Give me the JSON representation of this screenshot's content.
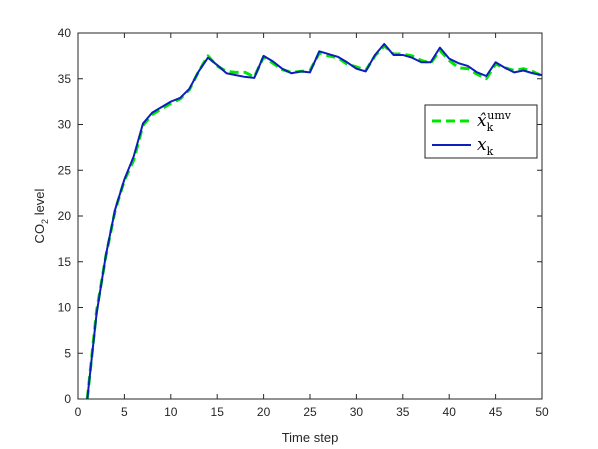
{
  "chart_data": {
    "type": "line",
    "title": "",
    "xlabel": "Time step",
    "ylabel": "CO",
    "ylabel_subscript": "2",
    "ylabel_suffix": " level",
    "xlim": [
      0,
      50
    ],
    "ylim": [
      0,
      40
    ],
    "xticks": [
      0,
      5,
      10,
      15,
      20,
      25,
      30,
      35,
      40,
      45,
      50
    ],
    "yticks": [
      0,
      5,
      10,
      15,
      20,
      25,
      30,
      35,
      40
    ],
    "grid": false,
    "legend_position": "top-right",
    "x": [
      1,
      2,
      3,
      4,
      5,
      6,
      7,
      8,
      9,
      10,
      11,
      12,
      13,
      14,
      15,
      16,
      17,
      18,
      19,
      20,
      21,
      22,
      23,
      24,
      25,
      26,
      27,
      28,
      29,
      30,
      31,
      32,
      33,
      34,
      35,
      36,
      37,
      38,
      39,
      40,
      41,
      42,
      43,
      44,
      45,
      46,
      47,
      48,
      49,
      50
    ],
    "series": [
      {
        "name_base": "x̂",
        "name_sub": "k",
        "name_sup": "umv",
        "style": "dashed",
        "color": "#00e600",
        "values": [
          0,
          9.6,
          15.6,
          20.6,
          23.9,
          26.1,
          29.9,
          31.1,
          31.7,
          32.3,
          32.8,
          33.8,
          35.8,
          37.5,
          36.4,
          35.8,
          35.7,
          35.7,
          35.2,
          37.4,
          36.7,
          36.0,
          35.7,
          35.8,
          35.9,
          37.8,
          37.5,
          37.3,
          36.6,
          36.3,
          35.9,
          37.5,
          38.6,
          37.7,
          37.7,
          37.5,
          37.0,
          36.7,
          38.1,
          37.0,
          36.2,
          36.1,
          35.5,
          35.0,
          36.6,
          36.2,
          35.9,
          36.1,
          35.8,
          35.3
        ]
      },
      {
        "name_base": "x",
        "name_sub": "k",
        "name_sup": "",
        "style": "solid",
        "color": "#0c1fb8",
        "values": [
          0,
          9.3,
          15.7,
          20.7,
          24.0,
          26.5,
          30.1,
          31.3,
          31.9,
          32.5,
          32.9,
          33.9,
          35.8,
          37.3,
          36.5,
          35.6,
          35.4,
          35.2,
          35.1,
          37.5,
          36.9,
          36.1,
          35.6,
          35.8,
          35.7,
          38.0,
          37.7,
          37.4,
          36.8,
          36.1,
          35.8,
          37.6,
          38.8,
          37.6,
          37.6,
          37.3,
          36.8,
          36.8,
          38.4,
          37.2,
          36.7,
          36.4,
          35.7,
          35.3,
          36.8,
          36.2,
          35.7,
          35.9,
          35.6,
          35.4
        ]
      }
    ]
  }
}
